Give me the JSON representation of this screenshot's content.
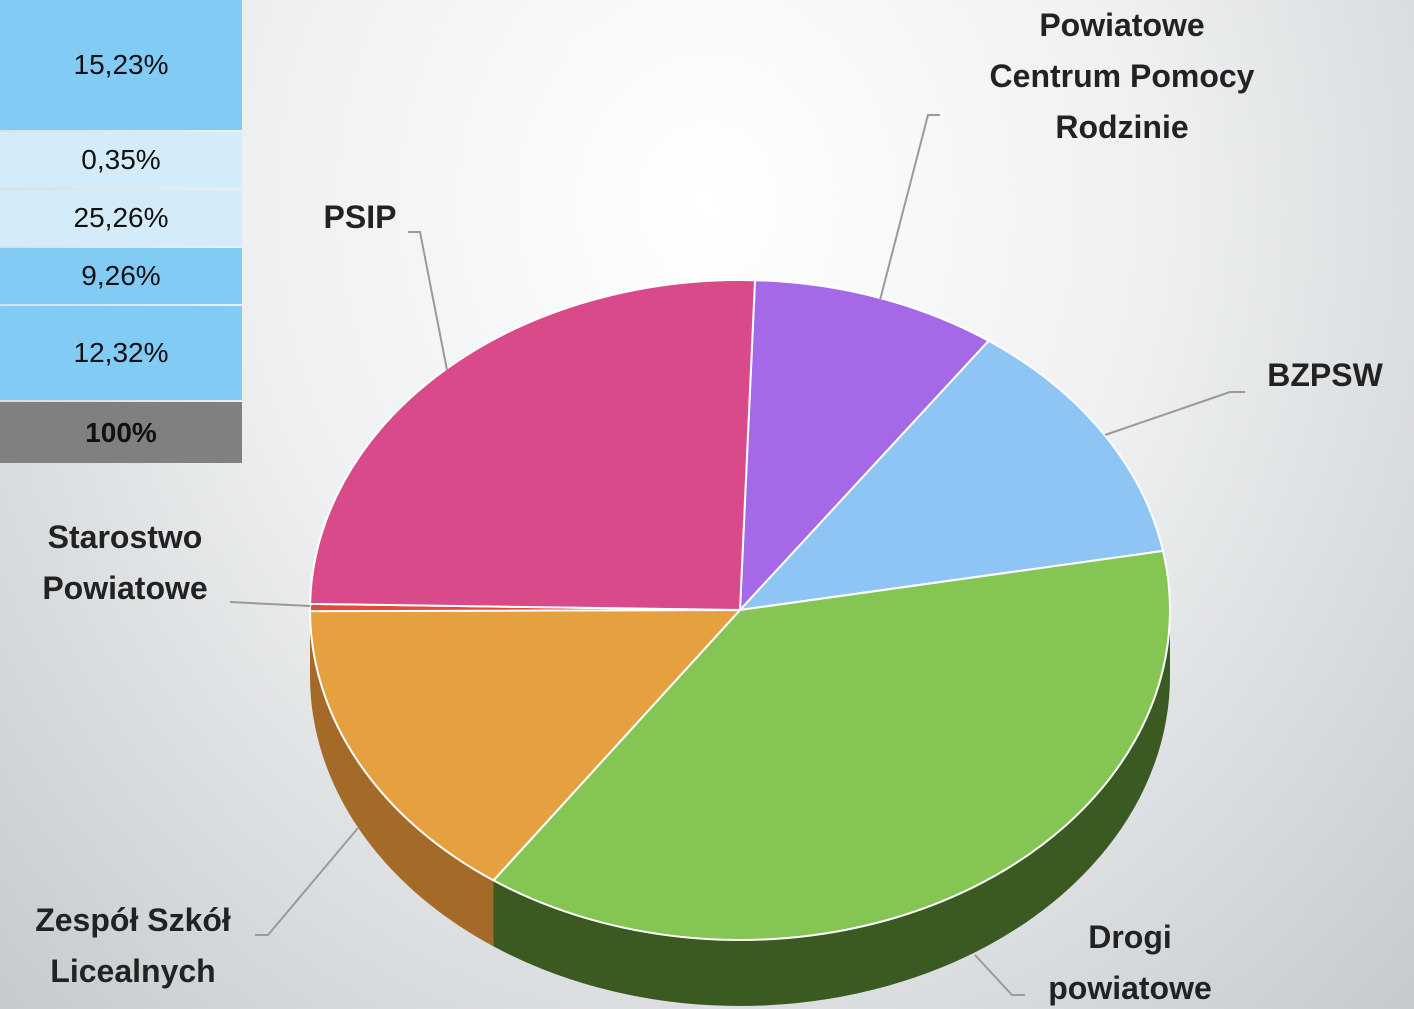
{
  "table": {
    "rows": [
      "15,23%",
      "0,35%",
      "25,26%",
      "9,26%",
      "12,32%",
      "100%"
    ]
  },
  "chart_data": {
    "type": "pie",
    "categories": [
      "Powiatowe Centrum Pomocy Rodzinie",
      "BZPSW",
      "Drogi powiatowe",
      "Zespół Szkół Licealnych",
      "Starostwo Powiatowe",
      "PSIP"
    ],
    "values": [
      9.26,
      12.32,
      37.58,
      15.23,
      0.35,
      25.26
    ],
    "colors": [
      "#a569e8",
      "#8ec5f5",
      "#84c553",
      "#e5a040",
      "#e24a3a",
      "#d84a8a"
    ],
    "side_colors": [
      "#6a3f9a",
      "#5a86ad",
      "#3a5a22",
      "#a36a28",
      "#9a2e22",
      "#8f2c5a"
    ]
  }
}
